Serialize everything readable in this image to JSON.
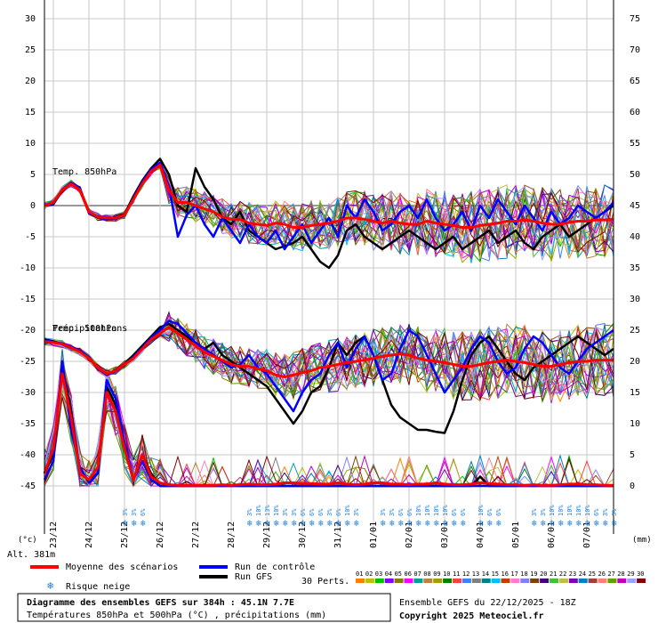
{
  "chart_data": {
    "type": "line",
    "title": "Diagramme des ensembles GEFS sur 384h : 45.1N 7.7E",
    "subtitle": "Températures 850hPa et 500hPa (°C) , précipitations (mm)",
    "run_label": "Ensemble GEFS du 22/12/2025 - 18Z",
    "copyright": "Copyright 2025 Meteociel.fr",
    "left_unit": "(°c)",
    "right_unit": "(mm)",
    "altitude": "Alt. 381m",
    "left_axis": {
      "ticks": [
        30,
        25,
        20,
        15,
        10,
        5,
        0,
        -5,
        -10,
        -15,
        -20,
        -25,
        -30,
        -35,
        -40,
        -45
      ],
      "ylim": [
        -45,
        33
      ]
    },
    "right_axis": {
      "ticks": [
        75,
        70,
        65,
        60,
        55,
        50,
        45,
        40,
        35,
        30,
        25,
        20,
        15,
        10,
        5,
        0
      ],
      "ylim": [
        0,
        78
      ]
    },
    "x_labels": [
      "23/12",
      "24/12",
      "25/12",
      "26/12",
      "27/12",
      "28/12",
      "29/12",
      "30/12",
      "31/12",
      "01/01",
      "02/01",
      "03/01",
      "04/01",
      "05/01",
      "06/01",
      "07/01"
    ],
    "panel_labels": {
      "t850": "Temp. 850hPa",
      "t500": "Temp. 500hPa",
      "precip": "Précipitations"
    },
    "hours": [
      0,
      6,
      12,
      18,
      24,
      30,
      36,
      42,
      48,
      54,
      60,
      66,
      72,
      78,
      84,
      90,
      96,
      102,
      108,
      114,
      120,
      126,
      132,
      138,
      144,
      150,
      156,
      162,
      168,
      174,
      180,
      186,
      192,
      198,
      204,
      210,
      216,
      222,
      228,
      234,
      240,
      246,
      252,
      258,
      264,
      270,
      276,
      282,
      288,
      294,
      300,
      306,
      312,
      318,
      324,
      330,
      336,
      342,
      348,
      354,
      360,
      366,
      372,
      378,
      384
    ],
    "series": [
      {
        "name": "Moyenne des scénarios",
        "panel": "t850",
        "color": "#ff0000",
        "values": [
          0,
          0.5,
          2.5,
          3.5,
          2.5,
          -1,
          -1.8,
          -2,
          -2,
          -1.5,
          1,
          3.5,
          5.5,
          6.5,
          2.5,
          0.5,
          0.5,
          0,
          -0.5,
          -1,
          -1.8,
          -2.2,
          -2.2,
          -2.8,
          -3,
          -3.2,
          -2.8,
          -3,
          -3.5,
          -3.5,
          -3.2,
          -3,
          -2.8,
          -2.5,
          -2,
          -2,
          -2.2,
          -2.5,
          -2.8,
          -2.5,
          -2.8,
          -3,
          -3,
          -2.5,
          -2.8,
          -3,
          -3.2,
          -3.5,
          -3.5,
          -3.2,
          -3,
          -2.8,
          -2.5,
          -2.5,
          -2.3,
          -2.5,
          -2.8,
          -3,
          -3,
          -2.7,
          -2.5,
          -2.5,
          -2.3,
          -2.3,
          -2.2
        ]
      },
      {
        "name": "Run de contrôle",
        "panel": "t850",
        "color": "#0000ff",
        "values": [
          0,
          0.3,
          2.6,
          3.7,
          2.8,
          -1.2,
          -1.9,
          -2.2,
          -2.1,
          -1.6,
          1.2,
          3.8,
          5.8,
          6.9,
          3.2,
          -5,
          -1.5,
          0,
          -3,
          -5,
          -2,
          -4,
          -6,
          -3,
          -5,
          -6,
          -4,
          -7,
          -5,
          -3,
          -6,
          -4,
          -2,
          -5,
          0,
          -2,
          1,
          -1,
          -4,
          -3,
          -1,
          0,
          -2,
          1,
          -2,
          -4,
          -3,
          -1,
          -4,
          0,
          -2,
          1,
          -1,
          -3,
          0,
          -2,
          -4,
          -1,
          -3,
          -2,
          0,
          -1,
          -2,
          -1,
          0.5
        ]
      },
      {
        "name": "Run GFS",
        "panel": "t850",
        "color": "#000000",
        "values": [
          0,
          0.2,
          2.4,
          3.6,
          2.7,
          -1.1,
          -1.7,
          -2.1,
          -1.9,
          -1.4,
          1.5,
          4,
          6,
          7.5,
          5,
          0,
          -1,
          6,
          3,
          1,
          -2,
          -3,
          -1,
          -4,
          -5,
          -6,
          -7,
          -6.5,
          -6,
          -5,
          -7,
          -9,
          -10,
          -8,
          -4,
          -3,
          -5,
          -6,
          -7,
          -6,
          -5,
          -4,
          -5,
          -6,
          -7,
          -6,
          -5,
          -7,
          -6,
          -5,
          -4,
          -6,
          -5,
          -4,
          -6,
          -7,
          -5,
          -4,
          -3,
          -5,
          -4,
          -3,
          -2,
          -1,
          0
        ]
      },
      {
        "name": "Moyenne des scénarios",
        "panel": "t500",
        "color": "#ff0000",
        "values": [
          -21.8,
          -22,
          -22.2,
          -22.8,
          -23.5,
          -24.5,
          -26,
          -27,
          -26.5,
          -25.5,
          -24.5,
          -23,
          -21.5,
          -20.5,
          -19.5,
          -20.5,
          -21.5,
          -22.5,
          -23.5,
          -24.2,
          -24.8,
          -25.5,
          -25.8,
          -25.8,
          -26.2,
          -26.5,
          -27.2,
          -27.5,
          -27.2,
          -26.8,
          -26.5,
          -26,
          -25.8,
          -25.5,
          -25.2,
          -25,
          -24.8,
          -24.5,
          -24.2,
          -24,
          -23.8,
          -24,
          -24.5,
          -24.8,
          -25,
          -25.2,
          -25.5,
          -25.8,
          -25.8,
          -25.5,
          -25.2,
          -25,
          -24.8,
          -25,
          -25.2,
          -25.5,
          -25.8,
          -25.8,
          -25.5,
          -25.2,
          -25,
          -25,
          -24.8,
          -24.8,
          -24.8
        ]
      },
      {
        "name": "Run de contrôle",
        "panel": "t500",
        "color": "#0000ff",
        "values": [
          -21.6,
          -21.9,
          -22.1,
          -22.6,
          -23.3,
          -24.3,
          -26.2,
          -27.2,
          -26.6,
          -25.6,
          -24.3,
          -22.8,
          -21.2,
          -20,
          -18.5,
          -19,
          -20.5,
          -22,
          -23,
          -24,
          -25,
          -26,
          -25.5,
          -24,
          -26,
          -27,
          -29,
          -31,
          -33,
          -30,
          -28,
          -27,
          -24,
          -22,
          -26,
          -23,
          -21,
          -24,
          -28,
          -27,
          -23,
          -20,
          -21,
          -24,
          -27,
          -30,
          -28,
          -26,
          -23,
          -21,
          -22,
          -25,
          -27,
          -26,
          -23,
          -21,
          -22,
          -24,
          -26,
          -27,
          -25,
          -23,
          -22,
          -21,
          -20
        ]
      },
      {
        "name": "Run GFS",
        "panel": "t500",
        "color": "#000000",
        "values": [
          -21.5,
          -21.8,
          -22.2,
          -22.7,
          -23.4,
          -24.4,
          -26.1,
          -27.1,
          -26.4,
          -25.4,
          -24,
          -22.5,
          -21,
          -19.5,
          -19,
          -20,
          -21,
          -22,
          -23,
          -22,
          -24,
          -25,
          -26,
          -27,
          -28,
          -29,
          -31,
          -33,
          -35,
          -33,
          -30,
          -29,
          -26,
          -22,
          -24,
          -22,
          -21,
          -24,
          -28,
          -32,
          -34,
          -35,
          -36,
          -36,
          -36.3,
          -36.5,
          -33,
          -28,
          -24,
          -22,
          -21,
          -23,
          -25,
          -27,
          -28,
          -26,
          -25,
          -24,
          -23,
          -22,
          -21,
          -22,
          -23,
          -24,
          -23
        ]
      },
      {
        "name": "Moyenne des scénarios",
        "panel": "precip",
        "color": "#ff0000",
        "values": [
          2,
          6,
          18,
          11,
          2,
          1,
          3,
          15,
          12,
          6,
          1,
          5,
          1.5,
          0.5,
          0.2,
          0.1,
          0.1,
          0.1,
          0.1,
          0.1,
          0.2,
          0.1,
          0.2,
          0.3,
          0.2,
          0.2,
          0.3,
          0.5,
          0.5,
          0.4,
          0.4,
          0.3,
          0.3,
          0.5,
          0.3,
          0.2,
          0.3,
          0.5,
          0.5,
          0.3,
          0.3,
          0.2,
          0.3,
          0.3,
          0.5,
          0.3,
          0.2,
          0.2,
          0.3,
          0.5,
          0.4,
          0.3,
          0.2,
          0.2,
          0.1,
          0.2,
          0.1,
          0.1,
          0.2,
          0.3,
          0.3,
          0.2,
          0.2,
          0.1,
          0.1
        ]
      },
      {
        "name": "Run de contrôle",
        "panel": "precip",
        "color": "#0000ff",
        "values": [
          1,
          4,
          20,
          9,
          3,
          0.5,
          2,
          17,
          14,
          7,
          1,
          4,
          1,
          0,
          0,
          0,
          0,
          0,
          0,
          0,
          0,
          0,
          0,
          0,
          0,
          0,
          0,
          0,
          0,
          0,
          0,
          0,
          0,
          0,
          0,
          0,
          0,
          0,
          0,
          0,
          0,
          0,
          0,
          0,
          0,
          0,
          0,
          0,
          0,
          0,
          0,
          0,
          0,
          0,
          0,
          0,
          0,
          0,
          0,
          0,
          0,
          0,
          0,
          0,
          0
        ]
      },
      {
        "name": "Run GFS",
        "panel": "precip",
        "color": "#000000",
        "values": [
          2,
          5,
          19,
          12,
          2,
          1,
          2,
          16,
          13,
          6,
          1,
          5,
          2,
          0,
          0,
          0,
          0,
          0,
          0,
          0,
          0,
          0,
          0,
          0,
          0,
          0,
          0,
          0,
          0,
          0,
          0,
          0,
          0,
          0,
          0,
          0,
          0,
          0,
          0,
          0,
          0,
          0,
          0,
          0,
          0,
          0,
          0,
          0,
          0,
          1.5,
          0,
          0,
          0,
          0,
          0,
          0,
          0,
          0,
          0,
          0,
          0,
          0,
          0,
          0,
          0
        ]
      }
    ],
    "snow_risk": [
      {
        "hour": 54,
        "labels": [
          "3%",
          "3%",
          "6%"
        ]
      },
      {
        "hour": 138,
        "labels": [
          "3%",
          "10%",
          "13%",
          "10%",
          "3%",
          "3%",
          "6%",
          "6%",
          "6%",
          "3%"
        ]
      },
      {
        "hour": 198,
        "labels": [
          "6%",
          "10%",
          "3%"
        ]
      },
      {
        "hour": 228,
        "labels": [
          "3%",
          "3%",
          "6%",
          "6%",
          "10%",
          "10%",
          "10%",
          "10%",
          "6%",
          "6%"
        ]
      },
      {
        "hour": 294,
        "labels": [
          "10%",
          "6%",
          "6%"
        ]
      },
      {
        "hour": 330,
        "labels": [
          "3%",
          "3%",
          "10%",
          "10%",
          "10%",
          "10%",
          "10%",
          "6%",
          "3%",
          "3%"
        ]
      }
    ],
    "legend": {
      "mean": "Moyenne des scénarios",
      "control": "Run de contrôle",
      "gfs": "Run GFS",
      "snow": "Risque neige",
      "perts": "30 Perts."
    },
    "pert_numbers": [
      "01",
      "02",
      "03",
      "04",
      "05",
      "06",
      "07",
      "08",
      "09",
      "10",
      "11",
      "12",
      "13",
      "14",
      "15",
      "16",
      "17",
      "18",
      "19",
      "20",
      "21",
      "22",
      "23",
      "24",
      "25",
      "26",
      "27",
      "28",
      "29",
      "30"
    ],
    "pert_colors": [
      "#ff8000",
      "#c0c000",
      "#00c000",
      "#8000ff",
      "#808000",
      "#ff00ff",
      "#00a0a0",
      "#c08040",
      "#a0a000",
      "#008000",
      "#ff4040",
      "#4080ff",
      "#808080",
      "#008080",
      "#00c0ff",
      "#c04000",
      "#ff80c0",
      "#8080ff",
      "#804000",
      "#400080",
      "#40c040",
      "#c0c040",
      "#8000c0",
      "#0080c0",
      "#a04040",
      "#ff8080",
      "#60a000",
      "#c000c0",
      "#a0a0ff",
      "#800000"
    ]
  }
}
